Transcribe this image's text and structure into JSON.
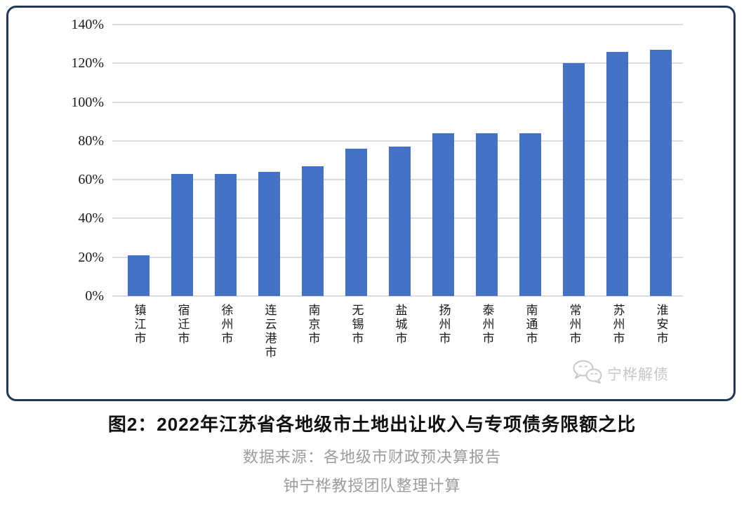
{
  "frame": {
    "border_color": "#22375A"
  },
  "chart_data": {
    "type": "bar",
    "title": "",
    "categories": [
      "镇江市",
      "宿迁市",
      "徐州市",
      "连云港市",
      "南京市",
      "无锡市",
      "盐城市",
      "扬州市",
      "泰州市",
      "南通市",
      "常州市",
      "苏州市",
      "淮安市"
    ],
    "values": [
      21,
      63,
      63,
      64,
      67,
      76,
      77,
      84,
      84,
      84,
      120,
      126,
      127
    ],
    "value_unit": "%",
    "xlabel": "",
    "ylabel": "",
    "ylim": [
      0,
      140
    ],
    "yticks": [
      0,
      20,
      40,
      60,
      80,
      100,
      120,
      140
    ],
    "ytick_labels": [
      "0%",
      "20%",
      "40%",
      "60%",
      "80%",
      "100%",
      "120%",
      "140%"
    ],
    "grid": true,
    "legend_position": "none",
    "bar_color": "#4472C4",
    "gridline_color": "#DCDCDC"
  },
  "watermark": {
    "icon": "wechat-icon",
    "label": "宁桦解债",
    "color": "#C7C7C7"
  },
  "caption": {
    "title": "图2：2022年江苏省各地级市土地出让收入与专项债务限额之比",
    "source": "数据来源：各地级市财政预决算报告",
    "credit": "钟宁桦教授团队整理计算"
  }
}
